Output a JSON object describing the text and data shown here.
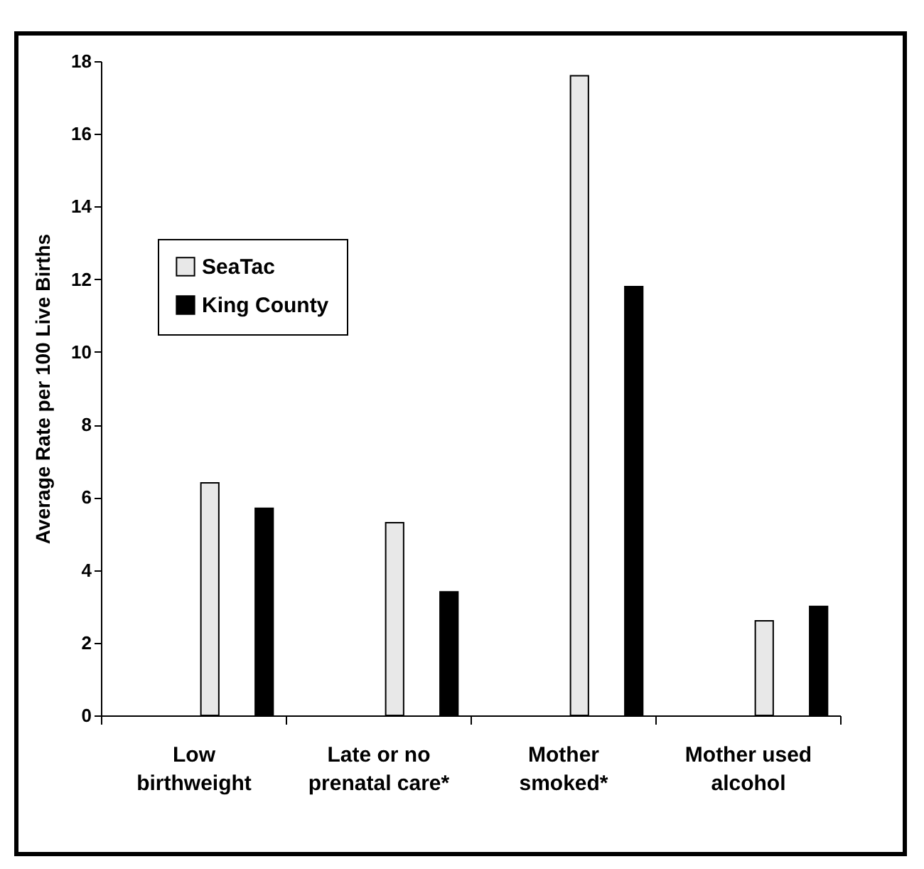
{
  "chart_data": {
    "type": "bar",
    "ylabel": "Average Rate per 100 Live Births",
    "categories": [
      "Low birthweight",
      "Late or no prenatal care*",
      "Mother smoked*",
      "Mother used alcohol"
    ],
    "series": [
      {
        "name": "SeaTac",
        "color": "#e8e8e8",
        "values": [
          6.4,
          5.3,
          17.6,
          2.6
        ]
      },
      {
        "name": "King County",
        "color": "#000000",
        "values": [
          5.7,
          3.4,
          11.8,
          3.0
        ]
      }
    ],
    "ylim": [
      0,
      18
    ],
    "yticks": [
      0,
      2,
      4,
      6,
      8,
      10,
      12,
      14,
      16,
      18
    ],
    "grid": false,
    "legend": "top left"
  }
}
